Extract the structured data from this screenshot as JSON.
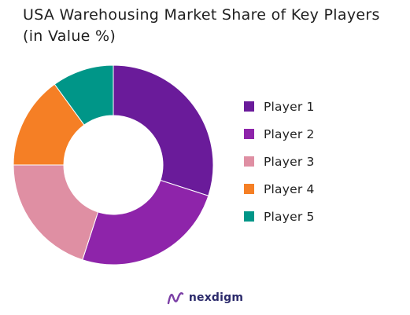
{
  "chart_data": {
    "type": "pie",
    "title_line1": "USA Warehousing Market Share of Key Players",
    "title_line2": "(in Value %)",
    "donut": true,
    "categories": [
      "Player 1",
      "Player 2",
      "Player 3",
      "Player 4",
      "Player 5"
    ],
    "values": [
      30,
      25,
      20,
      15,
      10
    ],
    "colors": [
      "#6a1b9a",
      "#8e24aa",
      "#df8fa3",
      "#f57f25",
      "#009688"
    ],
    "legend_position": "right"
  },
  "brand": {
    "name": "nexdigm"
  }
}
